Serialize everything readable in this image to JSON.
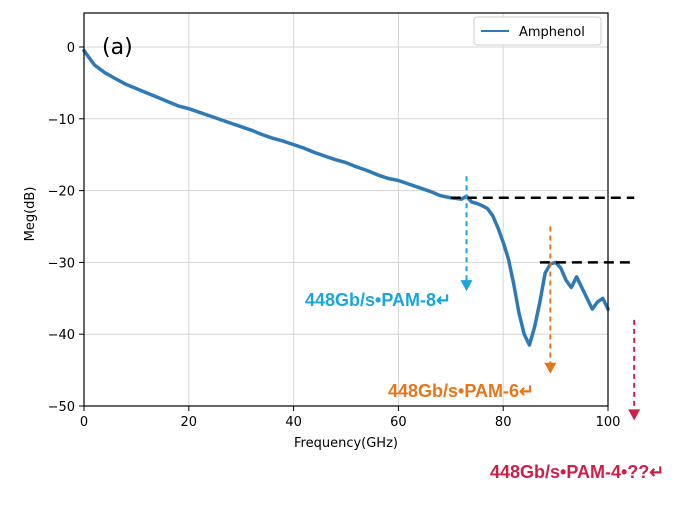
{
  "chart_data": {
    "type": "line",
    "panel_label": "(a)",
    "xlabel": "Frequency(GHz)",
    "ylabel": "Meg(dB)",
    "xlim": [
      0,
      100
    ],
    "ylim": [
      -50,
      2
    ],
    "x_ticks": [
      0,
      20,
      40,
      60,
      80,
      100
    ],
    "y_ticks": [
      0,
      -10,
      -20,
      -30,
      -40,
      -50
    ],
    "x_tick_labels": [
      "0",
      "20",
      "40",
      "60",
      "80",
      "100"
    ],
    "y_tick_labels": [
      "0",
      "−10",
      "−20",
      "−30",
      "−40",
      "−50"
    ],
    "grid": true,
    "legend": {
      "position": "top-right",
      "entries": [
        "Amphenol"
      ]
    },
    "series": [
      {
        "name": "Amphenol",
        "color": "#2f79b5",
        "x": [
          0,
          1,
          2,
          4,
          6,
          8,
          10,
          12,
          14,
          16,
          18,
          20,
          22,
          24,
          26,
          28,
          30,
          32,
          34,
          36,
          38,
          40,
          42,
          44,
          46,
          48,
          50,
          52,
          54,
          56,
          58,
          60,
          62,
          64,
          66,
          68,
          70,
          72,
          73,
          74,
          75,
          76,
          77,
          78,
          79,
          80,
          81,
          82,
          83,
          84,
          85,
          86,
          87,
          88,
          89,
          90,
          91,
          92,
          93,
          94,
          95,
          96,
          97,
          98,
          99,
          100
        ],
        "y": [
          -0.5,
          -1.5,
          -2.5,
          -3.6,
          -4.4,
          -5.2,
          -5.8,
          -6.4,
          -7.0,
          -7.6,
          -8.2,
          -8.6,
          -9.1,
          -9.6,
          -10.1,
          -10.6,
          -11.1,
          -11.6,
          -12.2,
          -12.7,
          -13.1,
          -13.6,
          -14.1,
          -14.7,
          -15.2,
          -15.7,
          -16.1,
          -16.7,
          -17.2,
          -17.8,
          -18.3,
          -18.6,
          -19.1,
          -19.6,
          -20.1,
          -20.7,
          -21.0,
          -21.2,
          -20.8,
          -21.6,
          -21.8,
          -22.1,
          -22.5,
          -23.5,
          -25.2,
          -27.2,
          -29.5,
          -33.0,
          -37.0,
          -40.0,
          -41.5,
          -39.0,
          -35.5,
          -31.5,
          -30.2,
          -30.0,
          -30.8,
          -32.5,
          -33.5,
          -32.0,
          -33.5,
          -35.0,
          -36.5,
          -35.5,
          -35.0,
          -36.5
        ]
      }
    ],
    "annotations": [
      {
        "text": "448Gb/s•PAM-8↵",
        "color": "#1aa6dc",
        "arrow_x": 73,
        "arrow_y_from": -18,
        "arrow_y_to": -34
      },
      {
        "text": "448Gb/s•PAM-6↵",
        "color": "#e6761a",
        "arrow_x": 89,
        "arrow_y_from": -25,
        "arrow_y_to": -45.5
      },
      {
        "text": "448Gb/s•PAM-4•??↵",
        "color": "#cc1f4a",
        "arrow_x": 105,
        "arrow_y_from": -38,
        "arrow_y_to": -52
      }
    ],
    "reference_lines": [
      {
        "y": -21,
        "x_from": 70,
        "x_to": 105,
        "color": "#000000",
        "style": "dashed"
      },
      {
        "y": -30,
        "x_from": 87,
        "x_to": 105,
        "color": "#000000",
        "style": "dashed"
      }
    ]
  }
}
